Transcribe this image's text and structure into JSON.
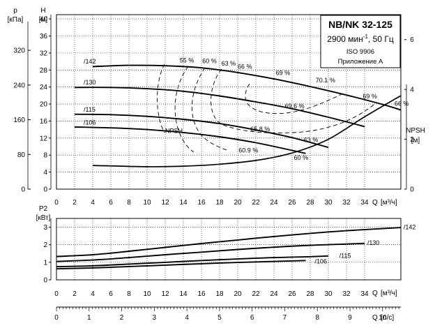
{
  "title_box": {
    "model": "NB/NK 32-125",
    "speed_prefix": "2900 мин",
    "speed_sup": "-1",
    "speed_suffix": ", 50 Гц",
    "standard": "ISO 9906",
    "annex": "Приложение А"
  },
  "axis_labels": {
    "p": "p",
    "p_unit": "[кПа]",
    "h": "H",
    "h_unit": "[м]",
    "npsh": "NPSH",
    "npsh_unit": "[м]",
    "q_head": "Q",
    "q_head_unit": "[м³/ч]",
    "p2": "P2",
    "p2_unit": "[кВт]",
    "q_power": "Q",
    "q_power_unit": "[м³/ч]",
    "q_ls": "Q",
    "q_ls_unit": "[л/с]"
  },
  "chart_data": [
    {
      "type": "line",
      "name": "head-curves",
      "x_ticks": [
        0,
        2,
        4,
        6,
        8,
        10,
        12,
        14,
        16,
        18,
        20,
        22,
        24,
        26,
        28,
        30,
        32,
        34
      ],
      "xlim": [
        0,
        38
      ],
      "h_ticks": [
        0,
        4,
        8,
        12,
        16,
        20,
        24,
        28,
        32,
        36,
        40
      ],
      "ylim": [
        0,
        41
      ],
      "p_ticks": [
        0,
        80,
        160,
        240,
        320
      ],
      "npsh_ticks": [
        0,
        2,
        4,
        6
      ],
      "npsh_lim": [
        0,
        7
      ],
      "series": [
        {
          "name": "/142",
          "label": "/142",
          "points": [
            [
              4,
              28.8
            ],
            [
              8,
              29.1
            ],
            [
              12,
              29
            ],
            [
              16,
              28.5
            ],
            [
              20,
              27.4
            ],
            [
              24,
              25.9
            ],
            [
              28,
              24.1
            ],
            [
              32,
              22.1
            ],
            [
              36,
              19.9
            ],
            [
              38,
              18.6
            ]
          ],
          "label_at": [
            3,
            29.5
          ]
        },
        {
          "name": "/130",
          "label": "/130",
          "points": [
            [
              2,
              23.9
            ],
            [
              6,
              23.9
            ],
            [
              10,
              23.6
            ],
            [
              14,
              23
            ],
            [
              18,
              21.9
            ],
            [
              22,
              20.5
            ],
            [
              26,
              18.9
            ],
            [
              30,
              16.9
            ],
            [
              34,
              14.7
            ]
          ],
          "label_at": [
            3,
            24.6
          ]
        },
        {
          "name": "/115",
          "label": "/115",
          "points": [
            [
              2,
              17.6
            ],
            [
              6,
              17.5
            ],
            [
              10,
              17.1
            ],
            [
              14,
              16.4
            ],
            [
              18,
              15.4
            ],
            [
              22,
              13.9
            ],
            [
              26,
              12.1
            ],
            [
              30,
              9.8
            ]
          ],
          "label_at": [
            3,
            18.2
          ]
        },
        {
          "name": "/106",
          "label": "/106",
          "points": [
            [
              2,
              14.6
            ],
            [
              6,
              14.4
            ],
            [
              10,
              14
            ],
            [
              14,
              13.3
            ],
            [
              18,
              12.3
            ],
            [
              22,
              10.9
            ],
            [
              26,
              9.1
            ],
            [
              27.5,
              8.4
            ]
          ],
          "label_at": [
            3,
            15.2
          ]
        }
      ],
      "npsh_curve": {
        "name": "NPSH",
        "label": "NPSH",
        "points": [
          [
            4,
            0.95
          ],
          [
            10,
            0.9
          ],
          [
            14,
            0.92
          ],
          [
            18,
            1.0
          ],
          [
            22,
            1.15
          ],
          [
            26,
            1.45
          ],
          [
            30,
            2.0
          ],
          [
            34,
            2.9
          ],
          [
            38,
            3.75
          ]
        ],
        "label_at": [
          12,
          2.25
        ]
      },
      "efficiency_labels": [
        {
          "text": "55 %",
          "at": [
            13.6,
            29.8
          ]
        },
        {
          "text": "60 %",
          "at": [
            16.1,
            29.6
          ]
        },
        {
          "text": "63 %",
          "at": [
            18.2,
            29.0
          ]
        },
        {
          "text": "66 %",
          "at": [
            20,
            28.3
          ]
        },
        {
          "text": "69 %",
          "at": [
            24.2,
            26.8
          ]
        },
        {
          "text": "70.1 %",
          "at": [
            28.6,
            25.1
          ]
        },
        {
          "text": "69 %",
          "at": [
            33.8,
            21.3
          ]
        },
        {
          "text": "66 %",
          "at": [
            37.3,
            19.6
          ]
        },
        {
          "text": "69.6 %",
          "at": [
            25.2,
            19.0
          ]
        },
        {
          "text": "65.8 %",
          "at": [
            21.4,
            13.6
          ]
        },
        {
          "text": "63 %",
          "at": [
            27.3,
            11.1
          ]
        },
        {
          "text": "60.9 %",
          "at": [
            20.1,
            8.6
          ]
        },
        {
          "text": "60 %",
          "at": [
            26.2,
            6.9
          ]
        }
      ]
    },
    {
      "type": "line",
      "name": "power-curves",
      "x_ticks": [
        0,
        2,
        4,
        6,
        8,
        10,
        12,
        14,
        16,
        18,
        20,
        22,
        24,
        26,
        28,
        30,
        32,
        34
      ],
      "xlim": [
        0,
        38
      ],
      "y_ticks": [
        0,
        1,
        2,
        3
      ],
      "ylim": [
        0,
        3.5
      ],
      "series": [
        {
          "name": "/142",
          "label": "/142",
          "points": [
            [
              0,
              1.33
            ],
            [
              4,
              1.43
            ],
            [
              8,
              1.63
            ],
            [
              12,
              1.85
            ],
            [
              16,
              2.07
            ],
            [
              20,
              2.27
            ],
            [
              24,
              2.47
            ],
            [
              28,
              2.65
            ],
            [
              32,
              2.8
            ],
            [
              36,
              2.92
            ],
            [
              38,
              2.98
            ]
          ]
        },
        {
          "name": "/130",
          "label": "/130",
          "points": [
            [
              0,
              1.05
            ],
            [
              4,
              1.13
            ],
            [
              8,
              1.27
            ],
            [
              12,
              1.43
            ],
            [
              16,
              1.58
            ],
            [
              20,
              1.73
            ],
            [
              24,
              1.86
            ],
            [
              28,
              1.97
            ],
            [
              32,
              2.04
            ],
            [
              34,
              2.08
            ]
          ]
        },
        {
          "name": "/115",
          "label": "/115",
          "points": [
            [
              0,
              0.75
            ],
            [
              4,
              0.8
            ],
            [
              8,
              0.9
            ],
            [
              12,
              1.0
            ],
            [
              16,
              1.1
            ],
            [
              20,
              1.19
            ],
            [
              24,
              1.27
            ],
            [
              28,
              1.32
            ],
            [
              30,
              1.36
            ]
          ]
        },
        {
          "name": "/106",
          "label": "/106",
          "points": [
            [
              0,
              0.63
            ],
            [
              4,
              0.68
            ],
            [
              8,
              0.76
            ],
            [
              12,
              0.84
            ],
            [
              16,
              0.92
            ],
            [
              20,
              0.99
            ],
            [
              24,
              1.05
            ],
            [
              27.5,
              1.1
            ]
          ]
        }
      ],
      "label_positions": {
        "/142": [
          38.3,
          3.0
        ],
        "/130": [
          34.3,
          2.1
        ],
        "/115": [
          31.2,
          1.37
        ],
        "/106": [
          28.5,
          1.05
        ]
      }
    },
    {
      "type": "line",
      "name": "flow-ls-axis",
      "x_ticks": [
        0,
        1,
        2,
        3,
        4,
        5,
        6,
        7,
        8,
        9,
        10
      ],
      "xlim": [
        0,
        10.56
      ]
    }
  ]
}
